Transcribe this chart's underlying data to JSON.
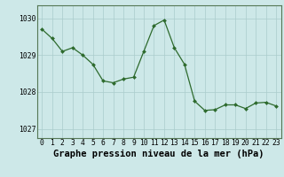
{
  "x": [
    0,
    1,
    2,
    3,
    4,
    5,
    6,
    7,
    8,
    9,
    10,
    11,
    12,
    13,
    14,
    15,
    16,
    17,
    18,
    19,
    20,
    21,
    22,
    23
  ],
  "y": [
    1029.7,
    1029.45,
    1029.1,
    1029.2,
    1029.0,
    1028.75,
    1028.3,
    1028.25,
    1028.35,
    1028.4,
    1029.1,
    1029.8,
    1029.95,
    1029.2,
    1028.75,
    1027.75,
    1027.5,
    1027.52,
    1027.65,
    1027.65,
    1027.55,
    1027.7,
    1027.72,
    1027.62
  ],
  "line_color": "#2d6a2d",
  "marker_color": "#2d6a2d",
  "bg_color": "#cde8e8",
  "grid_color": "#aacccc",
  "xlabel": "Graphe pression niveau de la mer (hPa)",
  "xlabel_fontsize": 7.5,
  "ylim": [
    1026.75,
    1030.35
  ],
  "yticks": [
    1027,
    1028,
    1029,
    1030
  ],
  "xticks": [
    0,
    1,
    2,
    3,
    4,
    5,
    6,
    7,
    8,
    9,
    10,
    11,
    12,
    13,
    14,
    15,
    16,
    17,
    18,
    19,
    20,
    21,
    22,
    23
  ],
  "tick_fontsize": 5.8,
  "border_color": "#557755"
}
